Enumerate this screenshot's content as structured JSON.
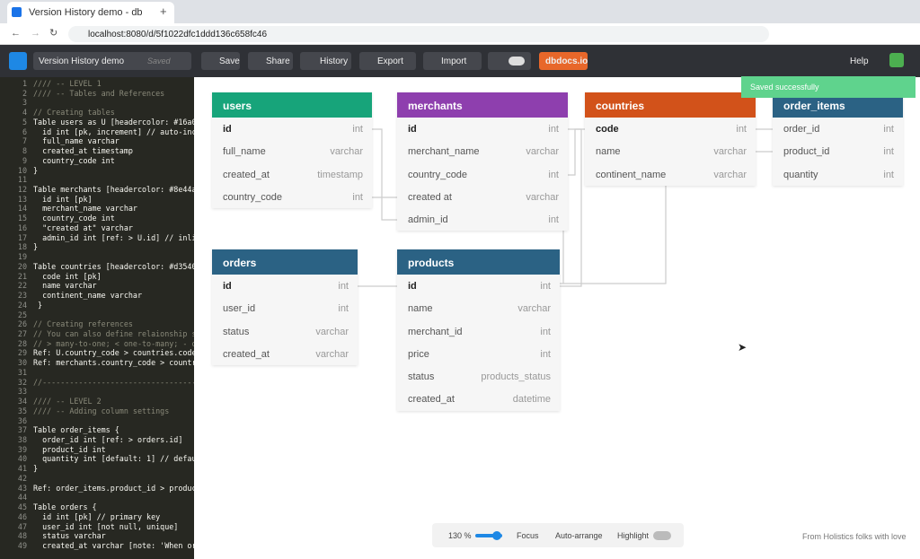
{
  "browser": {
    "tab_title": "Version History demo - db",
    "url": "localhost:8080/d/5f1022dfc1ddd136c658fc46"
  },
  "toolbar": {
    "doc_name": "Version History demo",
    "status": "Saved",
    "buttons": [
      "Save",
      "Share",
      "History",
      "Export",
      "Import"
    ],
    "dbdocs": "dbdocs.io",
    "help": "Help"
  },
  "toast": "Saved successfully",
  "editor": {
    "lines": [
      {
        "num": 1,
        "code": "//// -- LEVEL 1"
      },
      {
        "num": 2,
        "code": "//// -- Tables and References"
      },
      {
        "num": 3
      },
      {
        "num": 4,
        "code": "// Creating tables"
      },
      {
        "num": 5,
        "code": "Table users as U [headercolor: #16a0"
      },
      {
        "num": 6,
        "code": "  id int [pk, increment] // auto-inc"
      },
      {
        "num": 7,
        "code": "  full_name varchar"
      },
      {
        "num": 8,
        "code": "  created_at timestamp"
      },
      {
        "num": 9,
        "code": "  country_code int"
      },
      {
        "num": 10,
        "code": "}"
      },
      {
        "num": 11
      },
      {
        "num": 12,
        "code": "Table merchants [headercolor: #8e44a"
      },
      {
        "num": 13,
        "code": "  id int [pk]"
      },
      {
        "num": 14,
        "code": "  merchant_name varchar"
      },
      {
        "num": 15,
        "code": "  country_code int"
      },
      {
        "num": 16,
        "code": "  \"created at\" varchar"
      },
      {
        "num": 17,
        "code": "  admin_id int [ref: > U.id] // inli"
      },
      {
        "num": 18,
        "code": "}"
      },
      {
        "num": 19
      },
      {
        "num": 20,
        "code": "Table countries [headercolor: #d3540"
      },
      {
        "num": 21,
        "code": "  code int [pk]"
      },
      {
        "num": 22,
        "code": "  name varchar"
      },
      {
        "num": 23,
        "code": "  continent_name varchar"
      },
      {
        "num": 24,
        "code": " }"
      },
      {
        "num": 25
      },
      {
        "num": 26,
        "code": "// Creating references"
      },
      {
        "num": 27,
        "code": "// You can also define relaionship se"
      },
      {
        "num": 28,
        "code": "// > many-to-one; < one-to-many; - on"
      },
      {
        "num": 29,
        "code": "Ref: U.country_code > countries.code"
      },
      {
        "num": 30,
        "code": "Ref: merchants.country_code > countr"
      },
      {
        "num": 31
      },
      {
        "num": 32,
        "code": "//-----------------------------------"
      },
      {
        "num": 33
      },
      {
        "num": 34,
        "code": "//// -- LEVEL 2"
      },
      {
        "num": 35,
        "code": "//// -- Adding column settings"
      },
      {
        "num": 36
      },
      {
        "num": 37,
        "code": "Table order_items {"
      },
      {
        "num": 38,
        "code": "  order_id int [ref: > orders.id]"
      },
      {
        "num": 39,
        "code": "  product_id int"
      },
      {
        "num": 40,
        "code": "  quantity int [default: 1] // defau"
      },
      {
        "num": 41,
        "code": "}"
      },
      {
        "num": 42
      },
      {
        "num": 43,
        "code": "Ref: order_items.product_id > produc"
      },
      {
        "num": 44
      },
      {
        "num": 45,
        "code": "Table orders {"
      },
      {
        "num": 46,
        "code": "  id int [pk] // primary key"
      },
      {
        "num": 47,
        "code": "  user_id int [not null, unique]"
      },
      {
        "num": 48,
        "code": "  status varchar"
      },
      {
        "num": 49,
        "code": "  created_at varchar [note: 'When or"
      }
    ]
  },
  "tables": [
    {
      "name": "users",
      "color": "#17a47a",
      "fields": [
        {
          "name": "id",
          "type": "int",
          "pk": true
        },
        {
          "name": "full_name",
          "type": "varchar"
        },
        {
          "name": "created_at",
          "type": "timestamp"
        },
        {
          "name": "country_code",
          "type": "int"
        }
      ]
    },
    {
      "name": "merchants",
      "color": "#8e3fae",
      "fields": [
        {
          "name": "id",
          "type": "int",
          "pk": true
        },
        {
          "name": "merchant_name",
          "type": "varchar"
        },
        {
          "name": "country_code",
          "type": "int"
        },
        {
          "name": "created at",
          "type": "varchar"
        },
        {
          "name": "admin_id",
          "type": "int"
        }
      ]
    },
    {
      "name": "countries",
      "color": "#d2521a",
      "fields": [
        {
          "name": "code",
          "type": "int",
          "pk": true
        },
        {
          "name": "name",
          "type": "varchar"
        },
        {
          "name": "continent_name",
          "type": "varchar"
        }
      ]
    },
    {
      "name": "order_items",
      "color": "#2b6284",
      "fields": [
        {
          "name": "order_id",
          "type": "int"
        },
        {
          "name": "product_id",
          "type": "int"
        },
        {
          "name": "quantity",
          "type": "int"
        }
      ]
    },
    {
      "name": "orders",
      "color": "#2b6284",
      "fields": [
        {
          "name": "id",
          "type": "int",
          "pk": true
        },
        {
          "name": "user_id",
          "type": "int"
        },
        {
          "name": "status",
          "type": "varchar"
        },
        {
          "name": "created_at",
          "type": "varchar"
        }
      ]
    },
    {
      "name": "products",
      "color": "#2b6284",
      "fields": [
        {
          "name": "id",
          "type": "int",
          "pk": true
        },
        {
          "name": "name",
          "type": "varchar"
        },
        {
          "name": "merchant_id",
          "type": "int"
        },
        {
          "name": "price",
          "type": "int"
        },
        {
          "name": "status",
          "type": "products_status"
        },
        {
          "name": "created_at",
          "type": "datetime"
        }
      ]
    }
  ],
  "bottom_bar": {
    "zoom": "130 %",
    "focus": "Focus",
    "auto_arrange": "Auto-arrange",
    "highlight": "Highlight"
  },
  "footer": "From Holistics folks with love"
}
